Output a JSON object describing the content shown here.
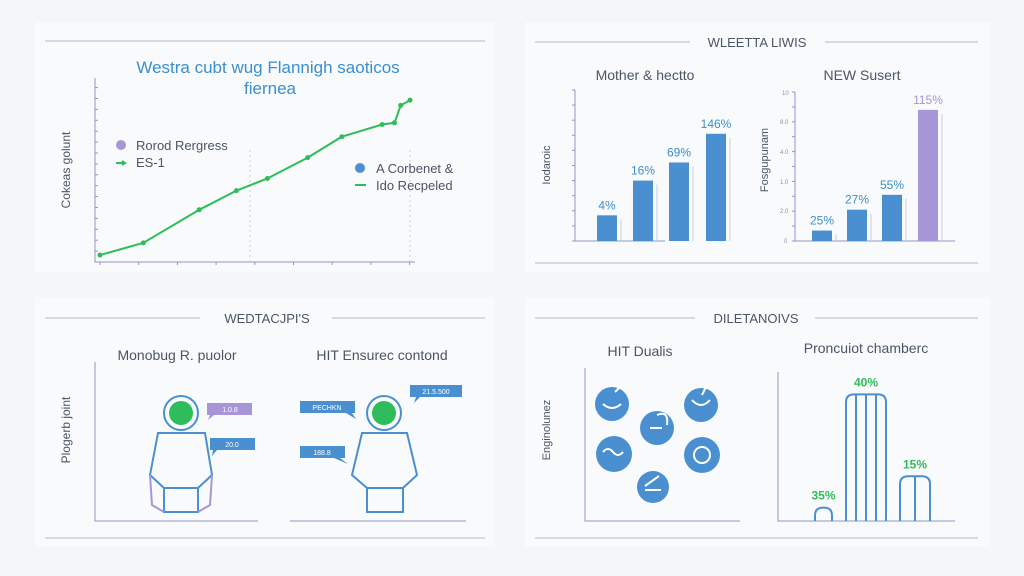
{
  "colors": {
    "blue": "#4a90d0",
    "green": "#2ebd5a",
    "purple": "#a895d8",
    "axis": "#8e98c4",
    "title_blue": "#3a8fd0"
  },
  "panels": {
    "top_left": {
      "title": "Westra cubt wug Flannigh saoticos",
      "subtitle": "fiernea",
      "ylabel": "Cokeas golunt",
      "legend": [
        {
          "label": "Rorod Rergress",
          "icon": "purple-dot-icon"
        },
        {
          "label": "ES-1",
          "icon": "green-line-icon"
        },
        {
          "label": "A Corbenet &",
          "icon": "blue-dot-icon"
        },
        {
          "label": "Ido Recpeled",
          "icon": "green-line-icon"
        }
      ]
    },
    "top_right": {
      "heading": "WLEETTA LIWIS",
      "left_title": "Mother & hectto",
      "left_ylabel": "Iodaroic",
      "right_title": "NEW Susert",
      "right_ylabel": "Fosgupunam",
      "right_ticks": [
        "10",
        "8.0",
        "4.0",
        "1.0",
        "2.0",
        "0"
      ]
    },
    "bottom_left": {
      "heading": "WEDTACJPI'S",
      "left_title": "Monobug R. puolor",
      "right_title": "HIT Ensurec contond",
      "ylabel": "Plogerb joint",
      "bubbles": [
        "1.0.8",
        "20.0",
        "PECHKN",
        "21.5.500",
        "188.8"
      ]
    },
    "bottom_right": {
      "heading": "DILETANOIVS",
      "left_title": "HIT Dualis",
      "left_ylabel": "Enginolunez",
      "right_title": "Proncuiot chamberc"
    }
  },
  "chart_data": [
    {
      "type": "line",
      "title": "Westra cubt wug Flannigh saoticos fiernea",
      "ylabel": "Cokeas golunt",
      "xlim": [
        0,
        10
      ],
      "ylim": [
        0,
        10
      ],
      "x": [
        0,
        1.4,
        3.2,
        4.4,
        5.4,
        6.7,
        7.8,
        9.1,
        9.5,
        9.7,
        10
      ],
      "y": [
        0.4,
        1.1,
        3.0,
        4.1,
        4.8,
        6.0,
        7.2,
        7.9,
        8.0,
        9.0,
        9.3
      ]
    },
    {
      "type": "bar",
      "title": "Mother & hectto",
      "ylabel": "Iodaroic",
      "ylim": [
        0,
        10
      ],
      "values": [
        1.7,
        4.0,
        5.2,
        7.1
      ],
      "labels": [
        "4%",
        "16%",
        "69%",
        "146%"
      ]
    },
    {
      "type": "bar",
      "title": "NEW Susert",
      "ylabel": "Fosgupunam",
      "ylim": [
        0,
        10
      ],
      "values": [
        0.7,
        2.1,
        3.1,
        8.8
      ],
      "labels": [
        "25%",
        "27%",
        "55%",
        "115%"
      ]
    },
    {
      "type": "bar",
      "title": "Proncuiot chamberc",
      "ylim": [
        0,
        10
      ],
      "values": [
        0.9,
        8.5,
        3.0
      ],
      "labels": [
        "35%",
        "40%",
        "15%"
      ]
    }
  ]
}
